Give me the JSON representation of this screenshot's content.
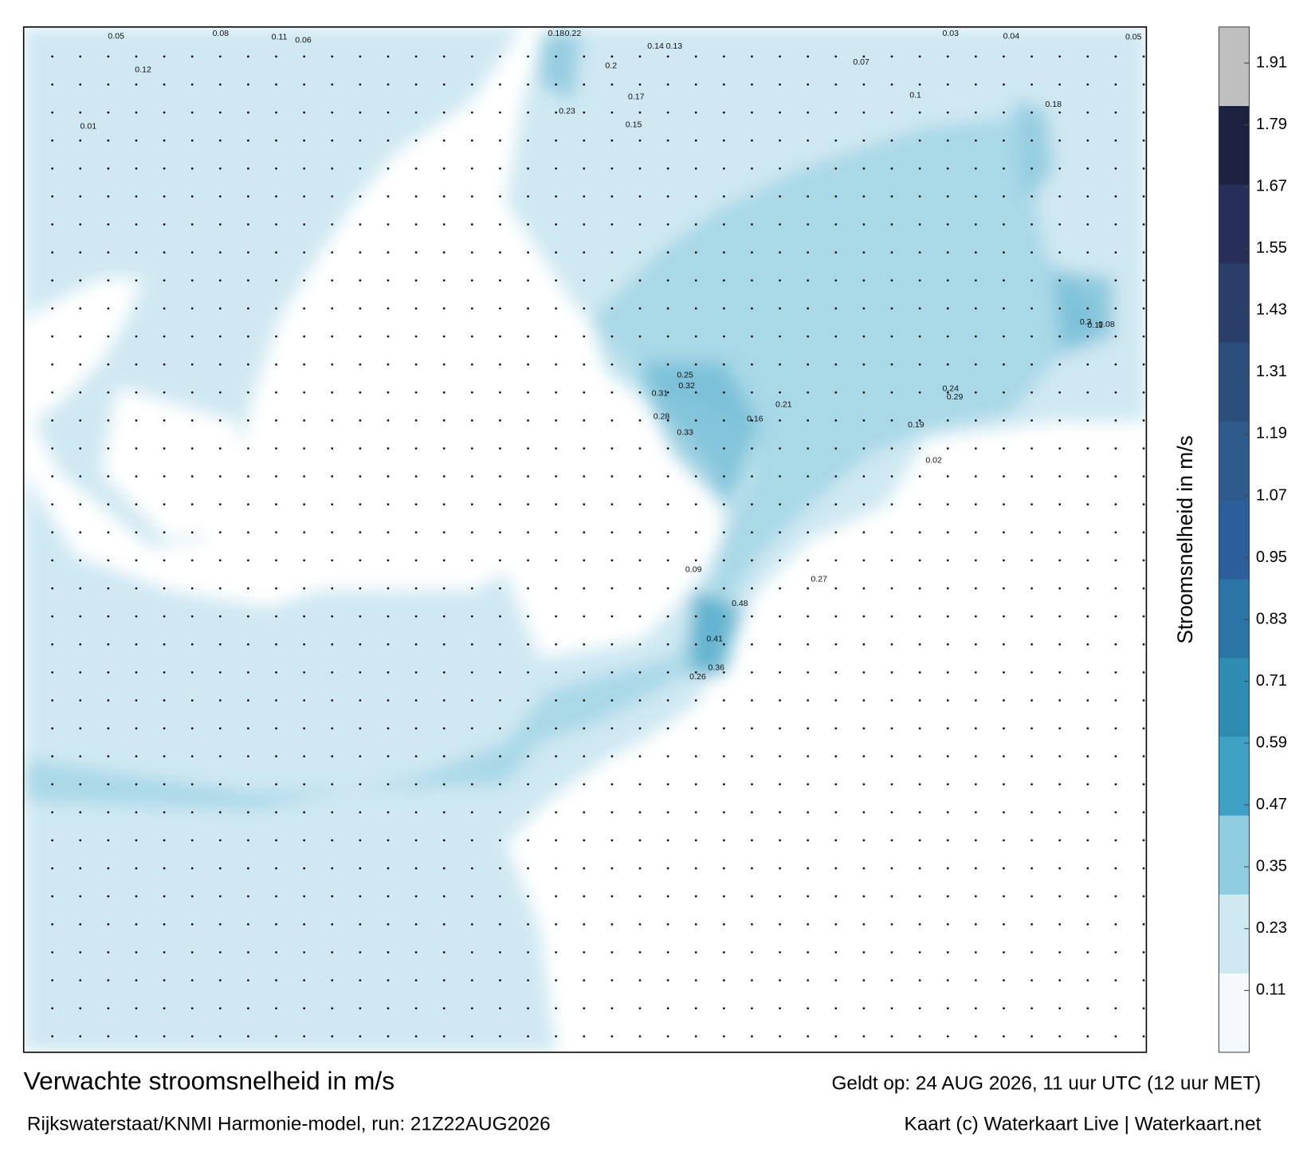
{
  "title": "Verwachte stroomsnelheid in m/s",
  "subtitle": "Rijkswaterstaat/KNMI Harmonie-model, run: 21Z22AUG2026",
  "valid_time": "Geldt op: 24 AUG 2026, 11 uur UTC (12 uur MET)",
  "credit": "Kaart (c) Waterkaart Live | Waterkaart.net",
  "colorbar": {
    "label": "Stroomsnelheid in m/s",
    "lim": [
      -0.01,
      1.98
    ],
    "ticks": [
      0.11,
      0.23,
      0.35,
      0.47,
      0.59,
      0.71,
      0.83,
      0.95,
      1.07,
      1.19,
      1.31,
      1.43,
      1.55,
      1.67,
      1.79,
      1.91
    ],
    "colors": [
      "#f4fafc",
      "#cfe9f2",
      "#8fcde0",
      "#3fa2c4",
      "#2e8cb3",
      "#2b74a6",
      "#2c5e99",
      "#2f5a8c",
      "#2b4e7a",
      "#2a3e6a",
      "#252f58",
      "#1d2240",
      "#bfbfbf"
    ]
  },
  "map_labels": [
    "0.05",
    "0.08",
    "0.11",
    "0.12",
    "0.01",
    "0.06",
    "0.18",
    "0.22",
    "0.14",
    "0.13",
    "0.03",
    "0.04",
    "0.05",
    "0.2",
    "0.18",
    "0.17",
    "0.07",
    "0.15",
    "0.1",
    "0.23",
    "0.25",
    "0.32",
    "0.31",
    "0.28",
    "0.33",
    "0.48",
    "0.41",
    "0.36",
    "0.26",
    "0.29",
    "0.21",
    "0.19",
    "0.16",
    "0.09",
    "0.02",
    "0.24",
    "0.27",
    "0.3",
    "0.11",
    "0.08"
  ]
}
